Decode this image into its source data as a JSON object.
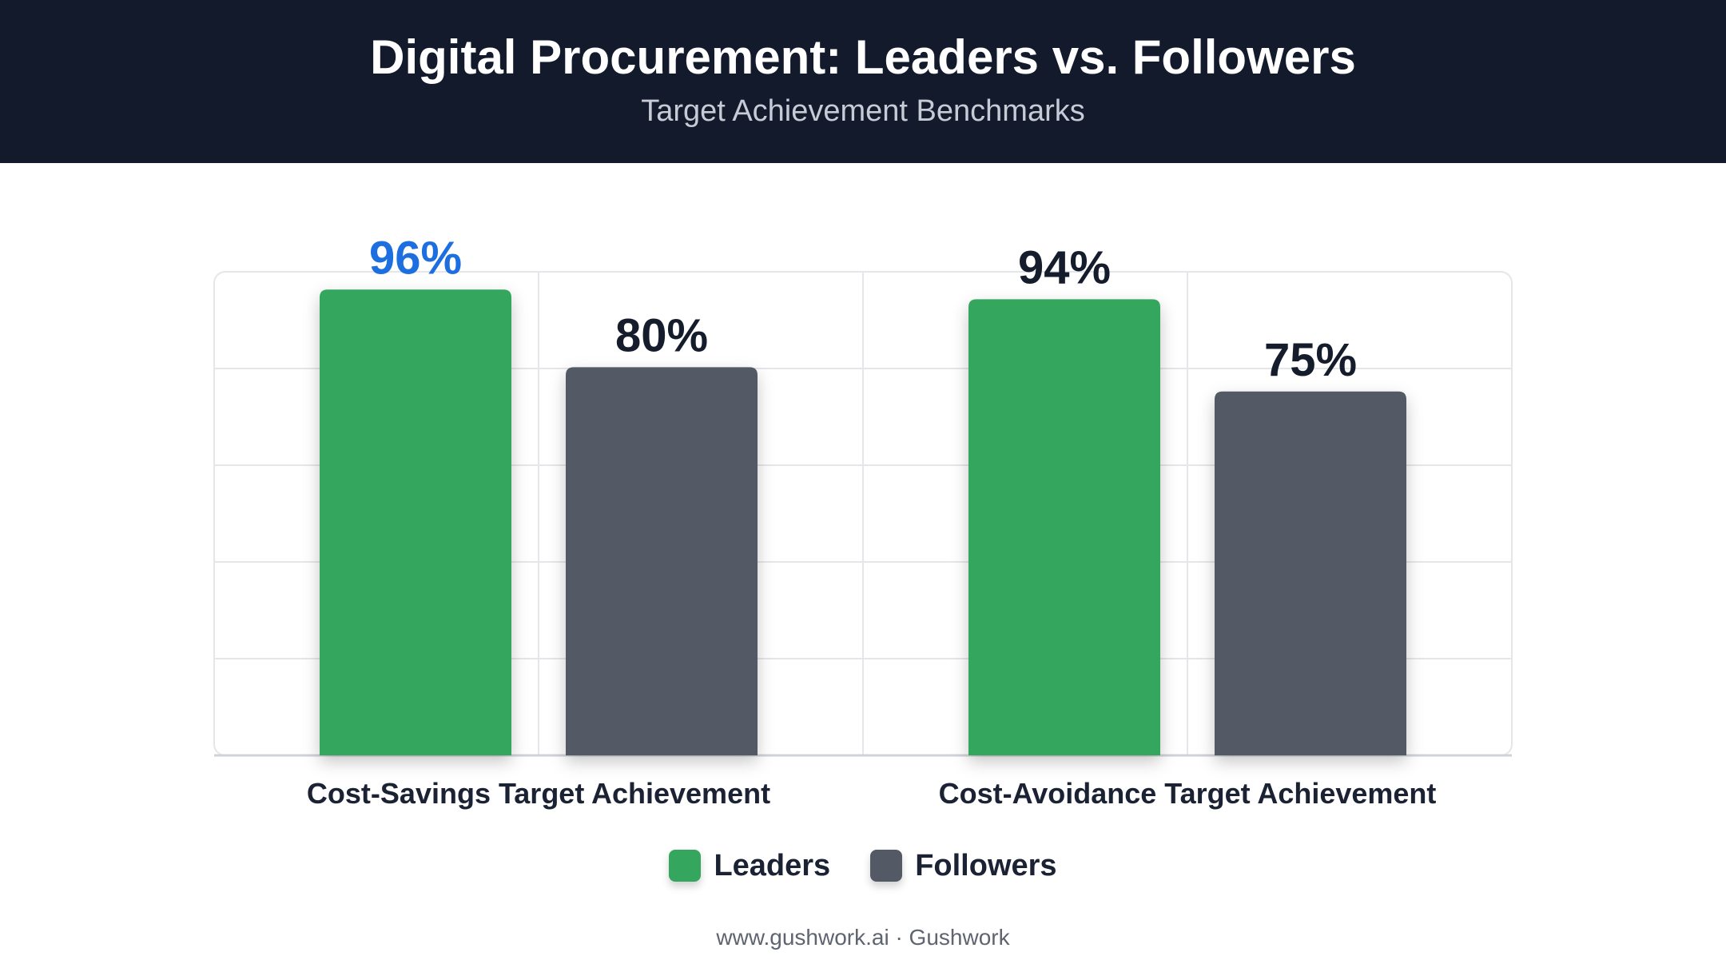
{
  "header": {
    "title": "Digital Procurement: Leaders vs. Followers",
    "subtitle": "Target Achievement Benchmarks"
  },
  "footer": {
    "text": "www.gushwork.ai · Gushwork"
  },
  "colors": {
    "leaders": "#34a65d",
    "followers": "#535a66",
    "highlight_label": "#1d6fe0",
    "label": "#151c2c"
  },
  "chart_data": {
    "type": "bar",
    "title": "Digital Procurement: Leaders vs. Followers",
    "subtitle": "Target Achievement Benchmarks",
    "categories": [
      "Cost-Savings Target Achievement",
      "Cost-Avoidance Target Achievement"
    ],
    "series": [
      {
        "name": "Leaders",
        "values": [
          96,
          94
        ],
        "data_labels": [
          "96%",
          "94%"
        ]
      },
      {
        "name": "Followers",
        "values": [
          80,
          75
        ],
        "data_labels": [
          "80%",
          "75%"
        ]
      }
    ],
    "ylim": [
      0,
      100
    ],
    "unit": "%",
    "grid": true,
    "legend_position": "bottom"
  }
}
